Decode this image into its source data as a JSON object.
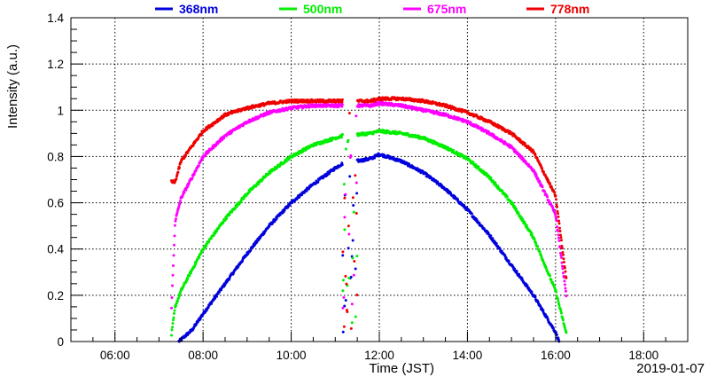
{
  "chart_data": {
    "type": "scatter",
    "title": "",
    "xlabel": "Time (JST)",
    "ylabel": "Intensity (a.u.)",
    "date_label": "2019-01-07",
    "xlim": [
      "05:00",
      "19:00"
    ],
    "ylim": [
      0,
      1.4
    ],
    "grid": true,
    "legend_position": "top",
    "x_tick_labels": [
      "06:00",
      "08:00",
      "10:00",
      "12:00",
      "14:00",
      "16:00",
      "18:00"
    ],
    "y_tick_labels": [
      "0",
      "0.2",
      "0.4",
      "0.6",
      "0.8",
      "1",
      "1.2",
      "1.4"
    ],
    "series": [
      {
        "name": "368nm",
        "color": "#0000dd",
        "x": [
          "07:27",
          "07:45",
          "08:00",
          "08:30",
          "09:00",
          "09:30",
          "10:00",
          "10:30",
          "11:00",
          "11:10",
          "11:48",
          "12:00",
          "12:30",
          "13:00",
          "13:30",
          "14:00",
          "14:30",
          "15:00",
          "15:30",
          "16:00",
          "16:05"
        ],
        "y": [
          0.0,
          0.05,
          0.12,
          0.25,
          0.38,
          0.5,
          0.6,
          0.68,
          0.75,
          0.77,
          0.79,
          0.81,
          0.78,
          0.73,
          0.66,
          0.57,
          0.46,
          0.33,
          0.2,
          0.04,
          0.0
        ]
      },
      {
        "name": "500nm",
        "color": "#00ee00",
        "x": [
          "07:17",
          "07:22",
          "07:30",
          "08:00",
          "08:30",
          "09:00",
          "09:30",
          "10:00",
          "10:30",
          "11:00",
          "11:10",
          "11:48",
          "12:00",
          "12:30",
          "13:00",
          "13:30",
          "14:00",
          "14:30",
          "15:00",
          "15:30",
          "16:00",
          "16:15"
        ],
        "y": [
          0.03,
          0.15,
          0.22,
          0.4,
          0.53,
          0.64,
          0.73,
          0.8,
          0.85,
          0.88,
          0.89,
          0.9,
          0.91,
          0.9,
          0.88,
          0.84,
          0.79,
          0.71,
          0.6,
          0.45,
          0.22,
          0.03
        ]
      },
      {
        "name": "675nm",
        "color": "#ff00ff",
        "x": [
          "07:17",
          "07:22",
          "07:30",
          "08:00",
          "08:30",
          "09:00",
          "09:30",
          "10:00",
          "10:30",
          "11:00",
          "11:10",
          "11:48",
          "12:00",
          "12:30",
          "13:00",
          "13:30",
          "14:00",
          "14:30",
          "15:00",
          "15:30",
          "16:00",
          "16:15"
        ],
        "y": [
          0.15,
          0.52,
          0.62,
          0.8,
          0.89,
          0.95,
          0.99,
          1.01,
          1.02,
          1.02,
          1.02,
          1.02,
          1.03,
          1.02,
          1.0,
          0.98,
          0.95,
          0.9,
          0.84,
          0.74,
          0.55,
          0.19
        ]
      },
      {
        "name": "778nm",
        "color": "#ee0000",
        "x": [
          "07:17",
          "07:22",
          "07:30",
          "08:00",
          "08:30",
          "09:00",
          "09:30",
          "10:00",
          "10:30",
          "11:00",
          "11:10",
          "11:48",
          "12:00",
          "12:30",
          "13:00",
          "13:30",
          "14:00",
          "14:30",
          "15:00",
          "15:30",
          "16:00",
          "16:15"
        ],
        "y": [
          0.69,
          0.69,
          0.78,
          0.91,
          0.98,
          1.01,
          1.03,
          1.04,
          1.04,
          1.04,
          1.04,
          1.04,
          1.05,
          1.05,
          1.04,
          1.02,
          0.99,
          0.95,
          0.9,
          0.82,
          0.63,
          0.26
        ]
      }
    ]
  }
}
